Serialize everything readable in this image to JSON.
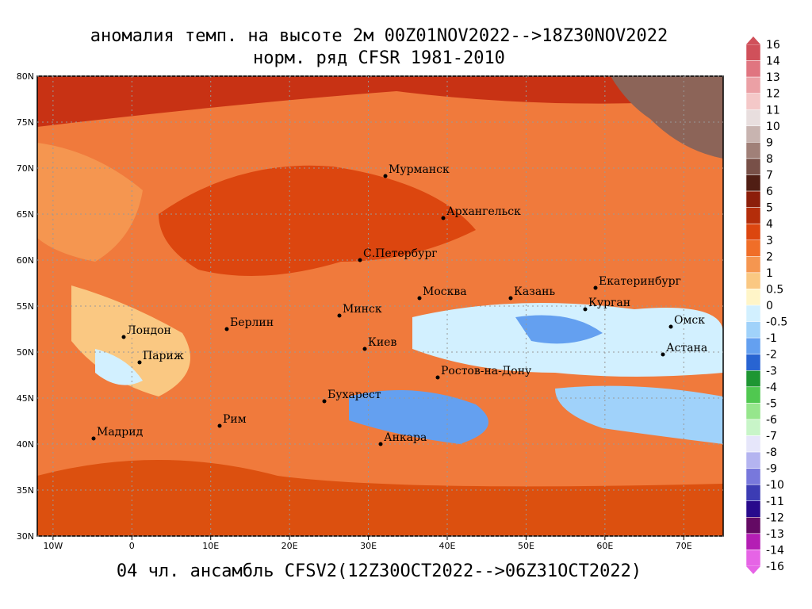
{
  "header": {
    "title": "аномалия темп. на высоте 2м 00Z01NOV2022-->18Z30NOV2022",
    "subtitle": "норм. ряд CFSR 1981-2010"
  },
  "footer": {
    "caption": "04 чл. ансамбль CFSV2(12Z30OCT2022-->06Z31OCT2022)"
  },
  "map": {
    "lonlim": [
      -12,
      75
    ],
    "latlim": [
      30,
      80
    ],
    "lonticks": [
      {
        "value": -10,
        "label": "10W"
      },
      {
        "value": 0,
        "label": "0"
      },
      {
        "value": 10,
        "label": "10E"
      },
      {
        "value": 20,
        "label": "20E"
      },
      {
        "value": 30,
        "label": "30E"
      },
      {
        "value": 40,
        "label": "40E"
      },
      {
        "value": 50,
        "label": "50E"
      },
      {
        "value": 60,
        "label": "60E"
      },
      {
        "value": 70,
        "label": "70E"
      }
    ],
    "latticks": [
      {
        "value": 30,
        "label": "30N"
      },
      {
        "value": 35,
        "label": "35N"
      },
      {
        "value": 40,
        "label": "40N"
      },
      {
        "value": 45,
        "label": "45N"
      },
      {
        "value": 50,
        "label": "50N"
      },
      {
        "value": 55,
        "label": "55N"
      },
      {
        "value": 60,
        "label": "60N"
      },
      {
        "value": 65,
        "label": "65N"
      },
      {
        "value": 70,
        "label": "70N"
      },
      {
        "value": 75,
        "label": "75N"
      },
      {
        "value": 80,
        "label": "80N"
      }
    ],
    "cities": [
      "Мурманск",
      "Архангельск",
      "С.Петербург",
      "Москва",
      "Казань",
      "Екатеринбург",
      "Курган",
      "Омск",
      "Астана",
      "Минск",
      "Киев",
      "Берлин",
      "Лондон",
      "Париж",
      "Ростов-на-Дону",
      "Бухарест",
      "Рим",
      "Мадрид",
      "Анкара"
    ]
  },
  "colorbar": {
    "levels": [
      16,
      14,
      13,
      12,
      11,
      10,
      9,
      8,
      7,
      6,
      5,
      4,
      3,
      2,
      1,
      0.5,
      0,
      -0.5,
      -1,
      -2,
      -3,
      -4,
      -5,
      -6,
      -7,
      -8,
      -9,
      -10,
      -11,
      -12,
      -13,
      -14,
      -16
    ],
    "colors": [
      "#d0505a",
      "#e07580",
      "#eba0a5",
      "#f4c8c8",
      "#e8dede",
      "#c8b4b0",
      "#a08078",
      "#785048",
      "#501e14",
      "#8c1e0a",
      "#b42d0a",
      "#dc460f",
      "#f06e28",
      "#f59650",
      "#fac882",
      "#fff5c8",
      "#d2f0ff",
      "#a0d2fa",
      "#64a0f0",
      "#2864d2",
      "#1e9632",
      "#50c850",
      "#96e68c",
      "#c8f5c8",
      "#e6e6fa",
      "#b4b4f0",
      "#7878dc",
      "#3c3cb4",
      "#280a8c",
      "#640a64",
      "#b41eb4",
      "#e664e6"
    ]
  }
}
